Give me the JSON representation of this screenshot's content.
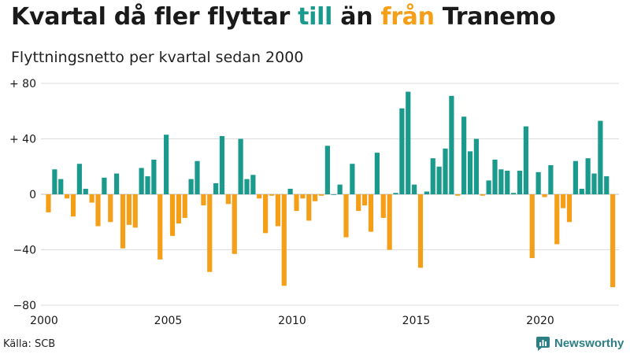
{
  "title": {
    "part1": "Kvartal då fler flyttar",
    "till": "till",
    "part2": "än",
    "fran": "från",
    "part3": "Tranemo"
  },
  "subtitle": "Flyttningsnetto per kvartal sedan 2000",
  "source": "Källa: SCB",
  "brand": "Newsworthy",
  "colors": {
    "positive": "#199a8c",
    "negative": "#f59f19",
    "grid": "#dcdcdc"
  },
  "chart_data": {
    "type": "bar",
    "x_tick_labels": [
      "2000",
      "2005",
      "2010",
      "2015",
      "2020"
    ],
    "y_tick_labels": [
      "+ 80",
      "+ 40",
      "0",
      "−40",
      "−80"
    ],
    "ylim": [
      -80,
      80
    ],
    "y_ticks": [
      80,
      40,
      0,
      -40,
      -80
    ],
    "x_ticks": [
      2000,
      2005,
      2010,
      2015,
      2020
    ],
    "xlim": [
      2000,
      2023
    ],
    "start": "2000 Q1",
    "values": [
      -13,
      18,
      11,
      -3,
      -16,
      22,
      4,
      -6,
      -23,
      12,
      -20,
      15,
      -39,
      -22,
      -24,
      19,
      13,
      25,
      -47,
      43,
      -30,
      -21,
      -17,
      11,
      24,
      -8,
      -56,
      8,
      42,
      -7,
      -43,
      40,
      11,
      14,
      -3,
      -28,
      -1,
      -23,
      -66,
      4,
      -12,
      -3,
      -19,
      -5,
      -1,
      35,
      0,
      7,
      -31,
      22,
      -12,
      -8,
      -27,
      30,
      -17,
      -40,
      1,
      62,
      74,
      7,
      -53,
      2,
      26,
      20,
      33,
      71,
      -1,
      56,
      31,
      40,
      -1,
      10,
      25,
      18,
      17,
      1,
      17,
      49,
      -46,
      16,
      -2,
      21,
      -36,
      -10,
      -20,
      24,
      4,
      26,
      15,
      53,
      13,
      -67
    ],
    "grid": true,
    "legend": "none"
  }
}
